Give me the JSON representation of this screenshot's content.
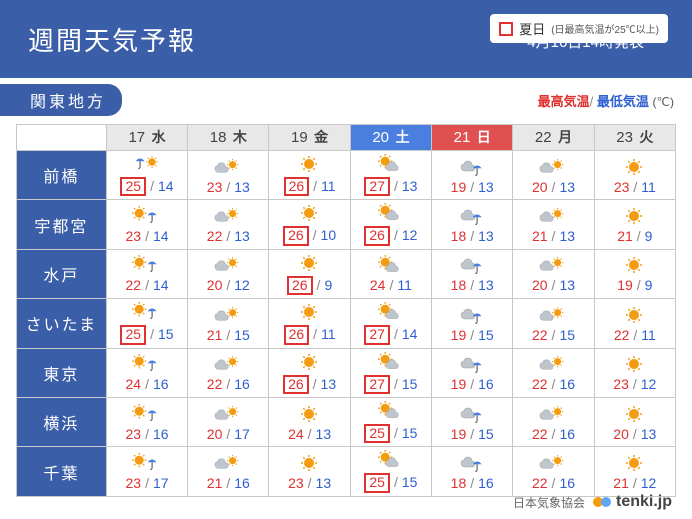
{
  "title": "週間天気予報",
  "issued": "4月16日14時発表",
  "legend_label": "夏日",
  "legend_note": "(日最高気温が25℃以上)",
  "region": "関東地方",
  "hi_label": "最高気温",
  "lo_label": "最低気温",
  "unit": "(℃)",
  "assoc": "日本気象協会",
  "brand": "tenki.jp",
  "dates": [
    {
      "d": "17",
      "w": "水",
      "cls": ""
    },
    {
      "d": "18",
      "w": "木",
      "cls": ""
    },
    {
      "d": "19",
      "w": "金",
      "cls": ""
    },
    {
      "d": "20",
      "w": "土",
      "cls": "sat"
    },
    {
      "d": "21",
      "w": "日",
      "cls": "sun"
    },
    {
      "d": "22",
      "w": "月",
      "cls": ""
    },
    {
      "d": "23",
      "w": "火",
      "cls": ""
    }
  ],
  "cities": [
    {
      "name": "前橋",
      "cells": [
        {
          "icon": "rain-sun",
          "hi": 25,
          "lo": 14,
          "hot": true
        },
        {
          "icon": "cloud-sun",
          "hi": 23,
          "lo": 13,
          "hot": false
        },
        {
          "icon": "sun",
          "hi": 26,
          "lo": 11,
          "hot": true
        },
        {
          "icon": "sun-cloud",
          "hi": 27,
          "lo": 13,
          "hot": true
        },
        {
          "icon": "cloud-rain",
          "hi": 19,
          "lo": 13,
          "hot": false
        },
        {
          "icon": "cloud-sun",
          "hi": 20,
          "lo": 13,
          "hot": false
        },
        {
          "icon": "sun",
          "hi": 23,
          "lo": 11,
          "hot": false
        }
      ]
    },
    {
      "name": "宇都宮",
      "cells": [
        {
          "icon": "sun-rain",
          "hi": 23,
          "lo": 14,
          "hot": false
        },
        {
          "icon": "cloud-sun",
          "hi": 22,
          "lo": 13,
          "hot": false
        },
        {
          "icon": "sun",
          "hi": 26,
          "lo": 10,
          "hot": true
        },
        {
          "icon": "sun-cloud",
          "hi": 26,
          "lo": 12,
          "hot": true
        },
        {
          "icon": "cloud-rain",
          "hi": 18,
          "lo": 13,
          "hot": false
        },
        {
          "icon": "cloud-sun",
          "hi": 21,
          "lo": 13,
          "hot": false
        },
        {
          "icon": "sun",
          "hi": 21,
          "lo": 9,
          "hot": false
        }
      ]
    },
    {
      "name": "水戸",
      "cells": [
        {
          "icon": "sun-rain",
          "hi": 22,
          "lo": 14,
          "hot": false
        },
        {
          "icon": "cloud-sun",
          "hi": 20,
          "lo": 12,
          "hot": false
        },
        {
          "icon": "sun",
          "hi": 26,
          "lo": 9,
          "hot": true
        },
        {
          "icon": "sun-cloud",
          "hi": 24,
          "lo": 11,
          "hot": false
        },
        {
          "icon": "cloud-rain",
          "hi": 18,
          "lo": 13,
          "hot": false
        },
        {
          "icon": "cloud-sun",
          "hi": 20,
          "lo": 13,
          "hot": false
        },
        {
          "icon": "sun",
          "hi": 19,
          "lo": 9,
          "hot": false
        }
      ]
    },
    {
      "name": "さいたま",
      "cells": [
        {
          "icon": "sun-rain",
          "hi": 25,
          "lo": 15,
          "hot": true
        },
        {
          "icon": "cloud-sun",
          "hi": 21,
          "lo": 15,
          "hot": false
        },
        {
          "icon": "sun",
          "hi": 26,
          "lo": 11,
          "hot": true
        },
        {
          "icon": "sun-cloud",
          "hi": 27,
          "lo": 14,
          "hot": true
        },
        {
          "icon": "cloud-rain",
          "hi": 19,
          "lo": 15,
          "hot": false
        },
        {
          "icon": "cloud-sun",
          "hi": 22,
          "lo": 15,
          "hot": false
        },
        {
          "icon": "sun",
          "hi": 22,
          "lo": 11,
          "hot": false
        }
      ]
    },
    {
      "name": "東京",
      "cells": [
        {
          "icon": "sun-rain",
          "hi": 24,
          "lo": 16,
          "hot": false
        },
        {
          "icon": "cloud-sun",
          "hi": 22,
          "lo": 16,
          "hot": false
        },
        {
          "icon": "sun",
          "hi": 26,
          "lo": 13,
          "hot": true
        },
        {
          "icon": "sun-cloud",
          "hi": 27,
          "lo": 15,
          "hot": true
        },
        {
          "icon": "cloud-rain",
          "hi": 19,
          "lo": 16,
          "hot": false
        },
        {
          "icon": "cloud-sun",
          "hi": 22,
          "lo": 16,
          "hot": false
        },
        {
          "icon": "sun",
          "hi": 23,
          "lo": 12,
          "hot": false
        }
      ]
    },
    {
      "name": "横浜",
      "cells": [
        {
          "icon": "sun-rain",
          "hi": 23,
          "lo": 16,
          "hot": false
        },
        {
          "icon": "cloud-sun",
          "hi": 20,
          "lo": 17,
          "hot": false
        },
        {
          "icon": "sun",
          "hi": 24,
          "lo": 13,
          "hot": false
        },
        {
          "icon": "sun-cloud",
          "hi": 25,
          "lo": 15,
          "hot": true
        },
        {
          "icon": "cloud-rain",
          "hi": 19,
          "lo": 15,
          "hot": false
        },
        {
          "icon": "cloud-sun",
          "hi": 22,
          "lo": 16,
          "hot": false
        },
        {
          "icon": "sun",
          "hi": 20,
          "lo": 13,
          "hot": false
        }
      ]
    },
    {
      "name": "千葉",
      "cells": [
        {
          "icon": "sun-rain",
          "hi": 23,
          "lo": 17,
          "hot": false
        },
        {
          "icon": "cloud-sun",
          "hi": 21,
          "lo": 16,
          "hot": false
        },
        {
          "icon": "sun",
          "hi": 23,
          "lo": 13,
          "hot": false
        },
        {
          "icon": "sun-cloud",
          "hi": 25,
          "lo": 15,
          "hot": true
        },
        {
          "icon": "cloud-rain",
          "hi": 18,
          "lo": 16,
          "hot": false
        },
        {
          "icon": "cloud-sun",
          "hi": 22,
          "lo": 16,
          "hot": false
        },
        {
          "icon": "sun",
          "hi": 21,
          "lo": 12,
          "hot": false
        }
      ]
    }
  ],
  "colors": {
    "brand_blue": "#3b5ea8",
    "hot_red": "#e03030",
    "hi": "#e03030",
    "lo": "#2e5fcf",
    "sat": "#4a7fe0",
    "sun_bg": "#e05050",
    "grid": "#c8c8c8",
    "head_gray": "#e8e8e8",
    "logo_a": "#f59e0b",
    "logo_b": "#60a5fa"
  }
}
